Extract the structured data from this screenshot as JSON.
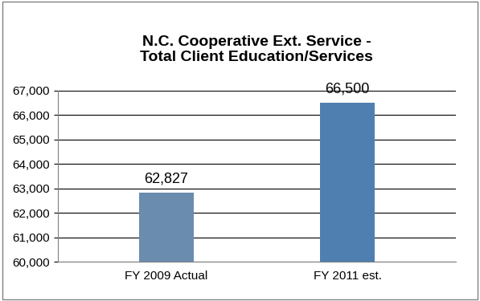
{
  "chart_data": {
    "type": "bar",
    "title": "N.C. Cooperative Ext. Service -\nTotal Client Education/Services",
    "categories": [
      "FY 2009 Actual",
      "FY 2011 est."
    ],
    "values": [
      62827,
      66500
    ],
    "value_labels": [
      "62,827",
      "66,500"
    ],
    "data_labels": true,
    "colors": [
      "#6a8caf",
      "#4f7fb0"
    ],
    "ylim": [
      60000,
      67000
    ],
    "yticks": [
      {
        "value": 60000,
        "label": "60,000"
      },
      {
        "value": 61000,
        "label": "61,000"
      },
      {
        "value": 62000,
        "label": "62,000"
      },
      {
        "value": 63000,
        "label": "63,000"
      },
      {
        "value": 64000,
        "label": "64,000"
      },
      {
        "value": 65000,
        "label": "65,000"
      },
      {
        "value": 66000,
        "label": "66,000"
      },
      {
        "value": 67000,
        "label": "67,000"
      }
    ],
    "grid": true
  }
}
